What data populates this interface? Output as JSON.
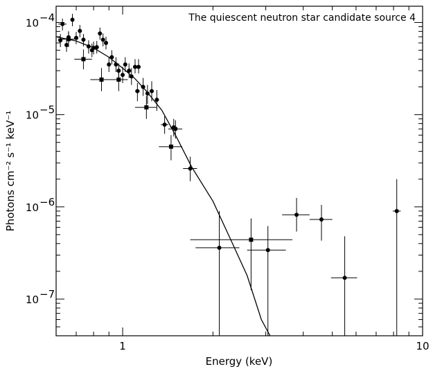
{
  "chart_data": {
    "type": "scatter",
    "title": "The quiescent neutron star candidate source 4",
    "xlabel": "Energy (keV)",
    "ylabel": "Photons cm⁻² s⁻¹ keV⁻¹",
    "x_scale": "log",
    "y_scale": "log",
    "xlim": [
      0.6,
      10
    ],
    "ylim": [
      4e-08,
      0.00015
    ],
    "x_tick_labels": [
      {
        "value": 1,
        "label": "1"
      },
      {
        "value": 10,
        "label": "10"
      }
    ],
    "y_tick_labels": [
      {
        "value": 1e-07,
        "base": "10",
        "exp": "−7"
      },
      {
        "value": 1e-06,
        "base": "10",
        "exp": "−6"
      },
      {
        "value": 1e-05,
        "base": "10",
        "exp": "−5"
      },
      {
        "value": 0.0001,
        "base": "10",
        "exp": "−4"
      }
    ],
    "grid": false,
    "series": [
      {
        "marker": "circle",
        "points": [
          {
            "x": 0.62,
            "y": 6.4e-05,
            "xerr": 0.01,
            "ylo": 5.4e-05,
            "yhi": 7.5e-05
          },
          {
            "x": 0.63,
            "y": 9.6e-05,
            "xerr": 0.02,
            "ylo": 8.2e-05,
            "yhi": 0.00011
          },
          {
            "x": 0.65,
            "y": 5.7e-05,
            "xerr": 0.01,
            "ylo": 4.8e-05,
            "yhi": 6.6e-05
          },
          {
            "x": 0.66,
            "y": 6.9e-05,
            "xerr": 0.01,
            "ylo": 5.9e-05,
            "yhi": 8e-05
          },
          {
            "x": 0.68,
            "y": 0.000107,
            "xerr": 0.01,
            "ylo": 9.1e-05,
            "yhi": 0.000124
          },
          {
            "x": 0.7,
            "y": 6.8e-05,
            "xerr": 0.01,
            "ylo": 5.8e-05,
            "yhi": 7.9e-05
          },
          {
            "x": 0.72,
            "y": 8.1e-05,
            "xerr": 0.01,
            "ylo": 6.9e-05,
            "yhi": 9.4e-05
          },
          {
            "x": 0.74,
            "y": 6.5e-05,
            "xerr": 0.01,
            "ylo": 5.5e-05,
            "yhi": 7.5e-05
          },
          {
            "x": 0.77,
            "y": 5.5e-05,
            "xerr": 0.01,
            "ylo": 4.6e-05,
            "yhi": 6.4e-05
          },
          {
            "x": 0.79,
            "y": 5e-05,
            "xerr": 0.01,
            "ylo": 4.2e-05,
            "yhi": 5.9e-05
          },
          {
            "x": 0.8,
            "y": 5.3e-05,
            "xerr": 0.01,
            "ylo": 4.5e-05,
            "yhi": 6.2e-05
          },
          {
            "x": 0.82,
            "y": 5.4e-05,
            "xerr": 0.01,
            "ylo": 4.6e-05,
            "yhi": 6.3e-05
          },
          {
            "x": 0.84,
            "y": 7.6e-05,
            "xerr": 0.01,
            "ylo": 6.5e-05,
            "yhi": 8.8e-05
          },
          {
            "x": 0.86,
            "y": 6.5e-05,
            "xerr": 0.01,
            "ylo": 5.5e-05,
            "yhi": 7.6e-05
          },
          {
            "x": 0.88,
            "y": 6e-05,
            "xerr": 0.01,
            "ylo": 5.1e-05,
            "yhi": 7e-05
          },
          {
            "x": 0.9,
            "y": 3.5e-05,
            "xerr": 0.01,
            "ylo": 2.9e-05,
            "yhi": 4.2e-05
          },
          {
            "x": 0.92,
            "y": 4.2e-05,
            "xerr": 0.01,
            "ylo": 3.5e-05,
            "yhi": 5e-05
          },
          {
            "x": 0.95,
            "y": 3.5e-05,
            "xerr": 0.01,
            "ylo": 2.9e-05,
            "yhi": 4.2e-05
          },
          {
            "x": 0.97,
            "y": 3e-05,
            "xerr": 0.01,
            "ylo": 2.5e-05,
            "yhi": 3.6e-05
          },
          {
            "x": 1.0,
            "y": 2.7e-05,
            "xerr": 0.015,
            "ylo": 2.2e-05,
            "yhi": 3.3e-05
          },
          {
            "x": 1.02,
            "y": 3.5e-05,
            "xerr": 0.015,
            "ylo": 2.9e-05,
            "yhi": 4.2e-05
          },
          {
            "x": 1.05,
            "y": 3e-05,
            "xerr": 0.015,
            "ylo": 2.5e-05,
            "yhi": 3.6e-05
          },
          {
            "x": 1.07,
            "y": 2.6e-05,
            "xerr": 0.015,
            "ylo": 2.1e-05,
            "yhi": 3.2e-05
          },
          {
            "x": 1.1,
            "y": 3.3e-05,
            "xerr": 0.015,
            "ylo": 2.8e-05,
            "yhi": 4e-05
          },
          {
            "x": 1.13,
            "y": 3.3e-05,
            "xerr": 0.015,
            "ylo": 2.8e-05,
            "yhi": 4e-05
          },
          {
            "x": 1.17,
            "y": 2e-05,
            "xerr": 0.02,
            "ylo": 1.6e-05,
            "yhi": 2.5e-05
          },
          {
            "x": 1.12,
            "y": 1.8e-05,
            "xerr": 0.02,
            "ylo": 1.4e-05,
            "yhi": 2.2e-05
          },
          {
            "x": 1.21,
            "y": 1.7e-05,
            "xerr": 0.02,
            "ylo": 1.3e-05,
            "yhi": 2.1e-05
          },
          {
            "x": 1.25,
            "y": 1.8e-05,
            "xerr": 0.02,
            "ylo": 1.4e-05,
            "yhi": 2.3e-05
          },
          {
            "x": 1.3,
            "y": 1.45e-05,
            "xerr": 0.02,
            "ylo": 1.1e-05,
            "yhi": 1.85e-05
          },
          {
            "x": 1.38,
            "y": 7.8e-06,
            "xerr": 0.04,
            "ylo": 6.2e-06,
            "yhi": 9.6e-06
          },
          {
            "x": 1.48,
            "y": 7.3e-06,
            "xerr": 0.04,
            "ylo": 5.8e-06,
            "yhi": 9e-06
          },
          {
            "x": 1.5,
            "y": 7e-06,
            "xerr": 0.08,
            "ylo": 5.5e-06,
            "yhi": 8.7e-06
          },
          {
            "x": 1.68,
            "y": 2.6e-06,
            "xerr": 0.09,
            "ylo": 1.9e-06,
            "yhi": 3.5e-06
          },
          {
            "x": 2.1,
            "y": 3.6e-07,
            "xerr": 0.35,
            "ylo": 4e-08,
            "yhi": 9e-07
          },
          {
            "x": 3.05,
            "y": 3.4e-07,
            "xerr": 0.45,
            "ylo": 4e-08,
            "yhi": 6.2e-07
          },
          {
            "x": 3.8,
            "y": 8.2e-07,
            "xerr": 0.4,
            "ylo": 5.4e-07,
            "yhi": 1.25e-06
          },
          {
            "x": 4.6,
            "y": 7.3e-07,
            "xerr": 0.4,
            "ylo": 4.3e-07,
            "yhi": 1.05e-06
          },
          {
            "x": 5.5,
            "y": 1.7e-07,
            "xerr": 0.55,
            "ylo": 4e-08,
            "yhi": 4.8e-07
          },
          {
            "x": 8.2,
            "y": 9e-07,
            "xerr": 0.25,
            "ylo": 4e-08,
            "yhi": 2e-06
          }
        ]
      },
      {
        "marker": "square",
        "points": [
          {
            "x": 0.66,
            "y": 6.6e-05,
            "xerr": 0.05,
            "ylo": 5.4e-05,
            "yhi": 8e-05
          },
          {
            "x": 0.74,
            "y": 4e-05,
            "xerr": 0.05,
            "ylo": 3.1e-05,
            "yhi": 5.1e-05
          },
          {
            "x": 0.85,
            "y": 2.4e-05,
            "xerr": 0.07,
            "ylo": 1.8e-05,
            "yhi": 3.2e-05
          },
          {
            "x": 0.97,
            "y": 2.4e-05,
            "xerr": 0.07,
            "ylo": 1.8e-05,
            "yhi": 3.2e-05
          },
          {
            "x": 1.2,
            "y": 1.2e-05,
            "xerr": 0.1,
            "ylo": 9e-06,
            "yhi": 1.6e-05
          },
          {
            "x": 1.45,
            "y": 4.5e-06,
            "xerr": 0.13,
            "ylo": 3.2e-06,
            "yhi": 6e-06
          },
          {
            "x": 2.68,
            "y": 4.4e-07,
            "xerr": 1.0,
            "ylo": 1.25e-07,
            "yhi": 7.5e-07
          }
        ]
      }
    ],
    "model_line": {
      "x": [
        0.6,
        0.7,
        0.8,
        0.9,
        1.0,
        1.1,
        1.2,
        1.35,
        1.5,
        1.7,
        2.0,
        2.3,
        2.6,
        2.9,
        3.1
      ],
      "y": [
        7e-05,
        6.3e-05,
        5.3e-05,
        4.2e-05,
        3.2e-05,
        2.45e-05,
        1.8e-05,
        1.12e-05,
        6e-06,
        2.7e-06,
        1.15e-06,
        4.3e-07,
        1.8e-07,
        6e-08,
        4e-08
      ]
    }
  }
}
